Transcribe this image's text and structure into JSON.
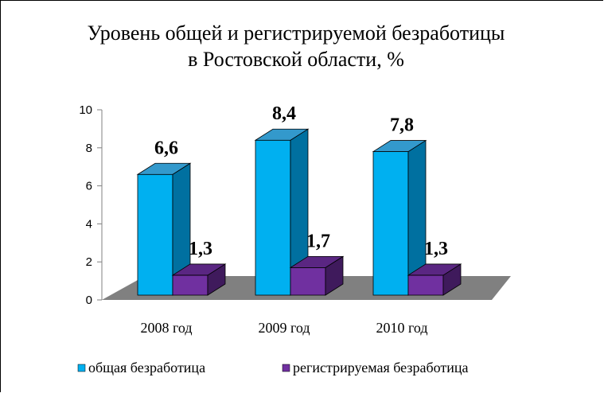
{
  "chart_data": {
    "type": "bar",
    "title_lines": [
      "Уровень общей и регистрируемой безработицы",
      "в Ростовской области, %"
    ],
    "categories": [
      "2008 год",
      "2009 год",
      "2010 год"
    ],
    "series": [
      {
        "name": "общая безработица",
        "values": [
          6.6,
          8.4,
          7.8
        ],
        "labels": [
          "6,6",
          "8,4",
          "7,8"
        ],
        "color": "#00B0F0",
        "side_color": "#0070A0",
        "top_color": "#3399CC"
      },
      {
        "name": "регистрируемая безработица",
        "values": [
          1.3,
          1.7,
          1.3
        ],
        "labels": [
          "1,3",
          "1,7",
          "1,3"
        ],
        "color": "#7030A0",
        "side_color": "#3F1A5C",
        "top_color": "#5A2682"
      }
    ],
    "y_ticks": [
      "0",
      "2",
      "4",
      "6",
      "8",
      "10"
    ],
    "ylim": [
      0,
      10
    ],
    "legend_position": "bottom",
    "floor_color": "#808080"
  }
}
